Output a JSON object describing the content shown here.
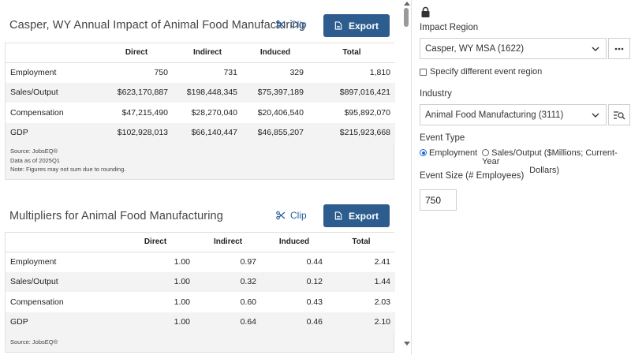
{
  "impact": {
    "title": "Casper, WY Annual Impact of Animal Food Manufacturing",
    "clip_label": "Clip",
    "export_label": "Export",
    "headers": [
      "",
      "Direct",
      "Indirect",
      "Induced",
      "Total"
    ],
    "rows": [
      {
        "label": "Employment",
        "direct": "750",
        "indirect": "731",
        "induced": "329",
        "total": "1,810"
      },
      {
        "label": "Sales/Output",
        "direct": "$623,170,887",
        "indirect": "$198,448,345",
        "induced": "$75,397,189",
        "total": "$897,016,421"
      },
      {
        "label": "Compensation",
        "direct": "$47,215,490",
        "indirect": "$28,270,040",
        "induced": "$20,406,540",
        "total": "$95,892,070"
      },
      {
        "label": "GDP",
        "direct": "$102,928,013",
        "indirect": "$66,140,447",
        "induced": "$46,855,207",
        "total": "$215,923,668"
      }
    ],
    "notes": [
      "Source: JobsEQ®",
      "Data as of 2025Q1",
      "Note: Figures may not sum due to rounding."
    ]
  },
  "multipliers": {
    "title": "Multipliers for Animal Food Manufacturing",
    "clip_label": "Clip",
    "export_label": "Export",
    "headers": [
      "",
      "Direct",
      "Indirect",
      "Induced",
      "Total"
    ],
    "rows": [
      {
        "label": "Employment",
        "direct": "1.00",
        "indirect": "0.97",
        "induced": "0.44",
        "total": "2.41"
      },
      {
        "label": "Sales/Output",
        "direct": "1.00",
        "indirect": "0.32",
        "induced": "0.12",
        "total": "1.44"
      },
      {
        "label": "Compensation",
        "direct": "1.00",
        "indirect": "0.60",
        "induced": "0.43",
        "total": "2.03"
      },
      {
        "label": "GDP",
        "direct": "1.00",
        "indirect": "0.64",
        "induced": "0.46",
        "total": "2.10"
      }
    ],
    "notes": [
      "Source: JobsEQ®"
    ]
  },
  "panel": {
    "impact_region_label": "Impact Region",
    "impact_region_value": "Casper, WY MSA (1622)",
    "different_region_label": "Specify different event region",
    "industry_label": "Industry",
    "industry_value": "Animal Food Manufacturing (3111)",
    "event_type_label": "Event Type",
    "event_type_option1": "Employment",
    "event_type_option2_line1": "Sales/Output ($Millions; Current-Year",
    "event_type_option2_line2": "Dollars)",
    "event_size_label": "Event Size (# Employees)",
    "event_size_value": "750"
  },
  "colors": {
    "accent": "#2d5d8f",
    "link": "#2a5f9e",
    "radio": "#1a6bd6"
  }
}
